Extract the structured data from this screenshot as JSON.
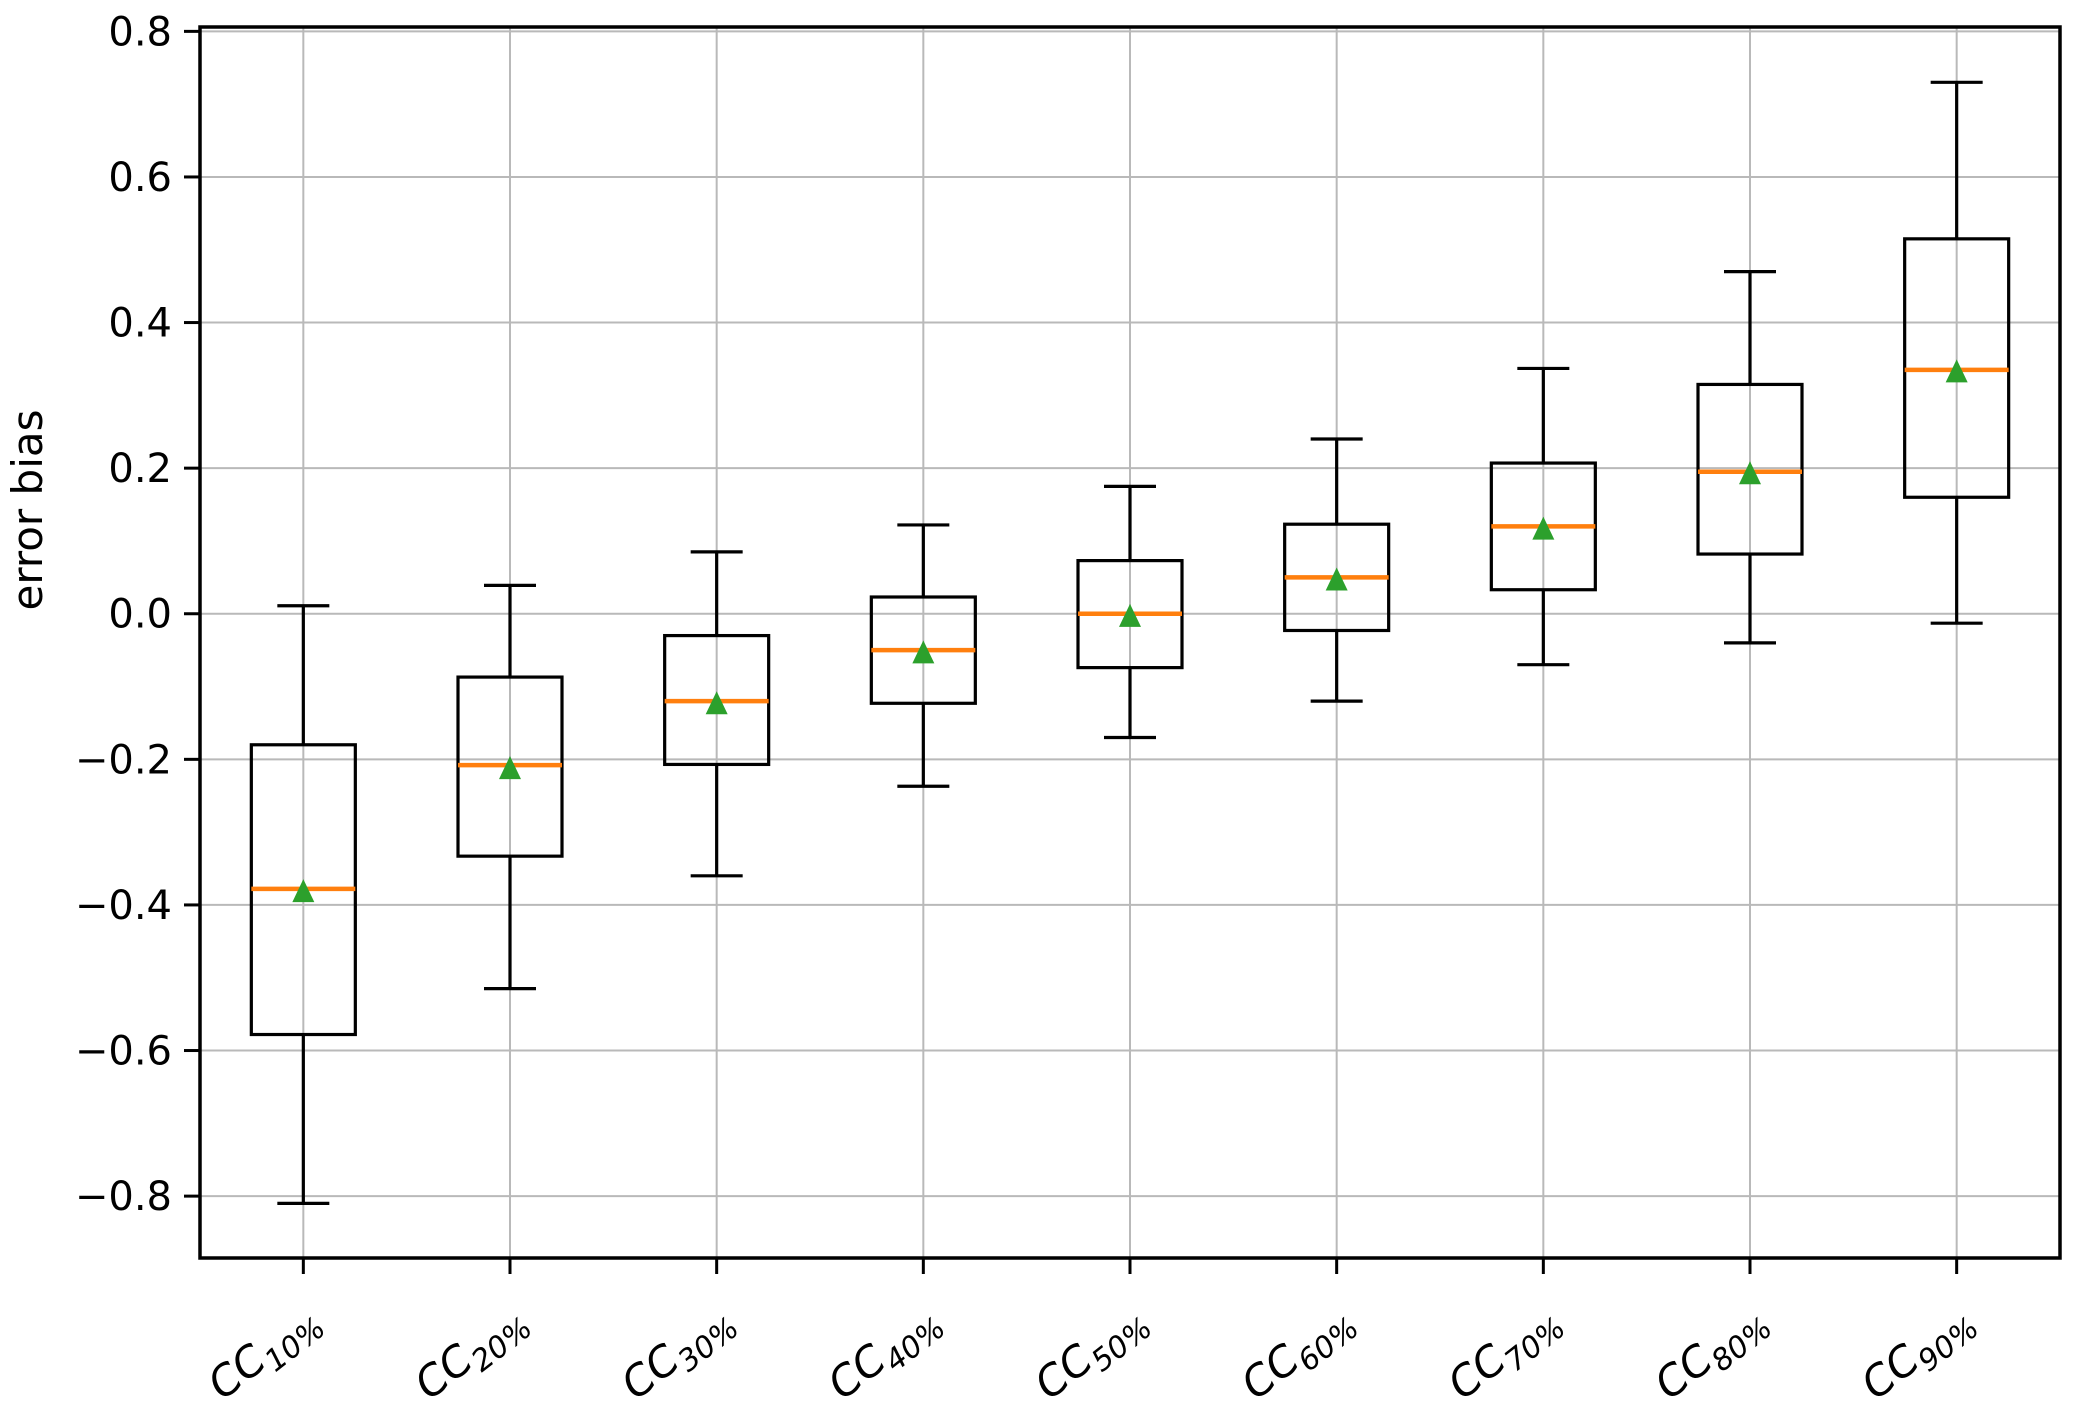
{
  "figure": {
    "background": "#ffffff"
  },
  "chart_data": {
    "type": "boxplot",
    "title": "",
    "xlabel": "",
    "ylabel": "error bias",
    "ylim": [
      -0.885,
      0.806
    ],
    "y_ticks": [
      0.8,
      0.6,
      0.4,
      0.2,
      0.0,
      -0.2,
      -0.4,
      -0.6,
      -0.8
    ],
    "grid": true,
    "legend": "none",
    "categories": [
      {
        "label": "CC10%",
        "base": "CC",
        "subscript": "10%"
      },
      {
        "label": "CC20%",
        "base": "CC",
        "subscript": "20%"
      },
      {
        "label": "CC30%",
        "base": "CC",
        "subscript": "30%"
      },
      {
        "label": "CC40%",
        "base": "CC",
        "subscript": "40%"
      },
      {
        "label": "CC50%",
        "base": "CC",
        "subscript": "50%"
      },
      {
        "label": "CC60%",
        "base": "CC",
        "subscript": "60%"
      },
      {
        "label": "CC70%",
        "base": "CC",
        "subscript": "70%"
      },
      {
        "label": "CC80%",
        "base": "CC",
        "subscript": "80%"
      },
      {
        "label": "CC90%",
        "base": "CC",
        "subscript": "90%"
      }
    ],
    "series": [
      {
        "category": "CC10%",
        "whisker_low": -0.81,
        "q1": -0.578,
        "median": -0.378,
        "mean": -0.381,
        "q3": -0.18,
        "whisker_high": 0.011
      },
      {
        "category": "CC20%",
        "whisker_low": -0.515,
        "q1": -0.333,
        "median": -0.208,
        "mean": -0.212,
        "q3": -0.087,
        "whisker_high": 0.039
      },
      {
        "category": "CC30%",
        "whisker_low": -0.36,
        "q1": -0.207,
        "median": -0.12,
        "mean": -0.123,
        "q3": -0.03,
        "whisker_high": 0.085
      },
      {
        "category": "CC40%",
        "whisker_low": -0.237,
        "q1": -0.123,
        "median": -0.05,
        "mean": -0.053,
        "q3": 0.023,
        "whisker_high": 0.122
      },
      {
        "category": "CC50%",
        "whisker_low": -0.17,
        "q1": -0.074,
        "median": 0.0,
        "mean": -0.003,
        "q3": 0.073,
        "whisker_high": 0.175
      },
      {
        "category": "CC60%",
        "whisker_low": -0.12,
        "q1": -0.023,
        "median": 0.05,
        "mean": 0.047,
        "q3": 0.123,
        "whisker_high": 0.24
      },
      {
        "category": "CC70%",
        "whisker_low": -0.07,
        "q1": 0.033,
        "median": 0.12,
        "mean": 0.117,
        "q3": 0.207,
        "whisker_high": 0.337
      },
      {
        "category": "CC80%",
        "whisker_low": -0.04,
        "q1": 0.082,
        "median": 0.195,
        "mean": 0.193,
        "q3": 0.315,
        "whisker_high": 0.47
      },
      {
        "category": "CC90%",
        "whisker_low": -0.013,
        "q1": 0.16,
        "median": 0.335,
        "mean": 0.333,
        "q3": 0.515,
        "whisker_high": 0.73
      }
    ],
    "style": {
      "median_color": "#ff7f0e",
      "mean_marker_color": "#2ca02c",
      "mean_marker": "triangle-up",
      "box_color": "#000000",
      "grid_color": "#b9b9b9",
      "x_tick_label_rotation_deg": 38
    }
  }
}
